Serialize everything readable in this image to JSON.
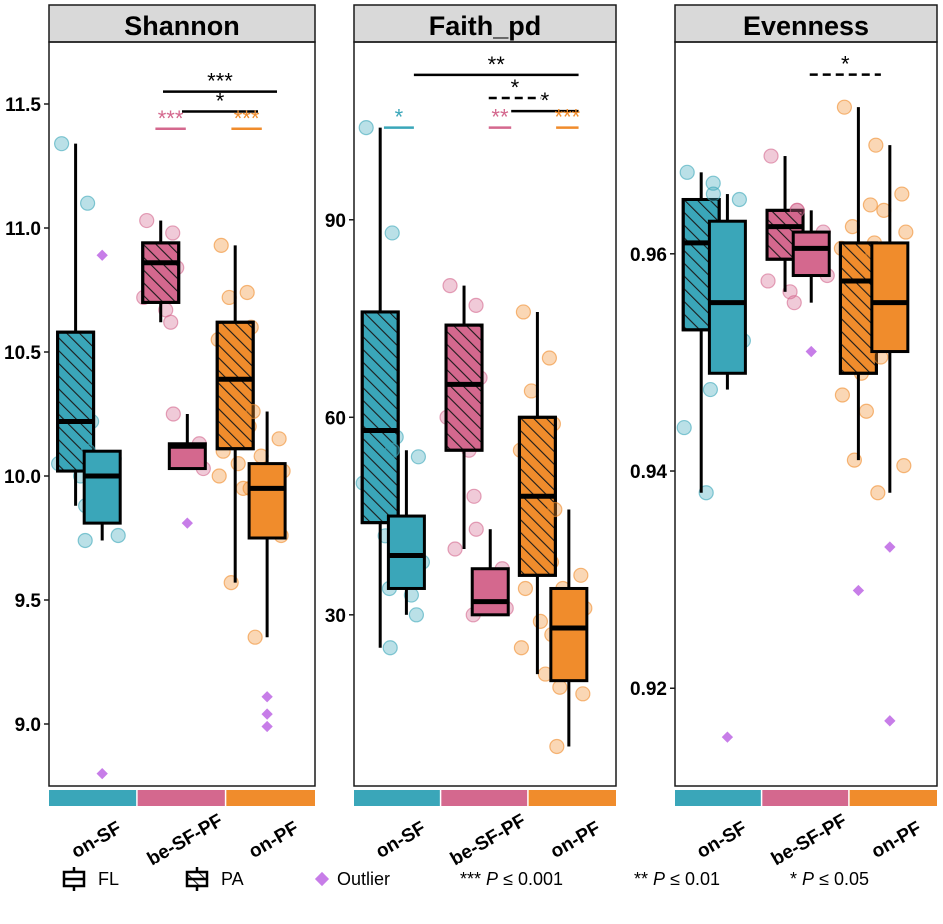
{
  "chart_data": [
    {
      "type": "box",
      "title": "Shannon",
      "ylim": [
        8.75,
        11.75
      ],
      "yticks": [
        "9.0",
        "9.5",
        "10.0",
        "10.5",
        "11.0",
        "11.5"
      ],
      "categories": [
        "on-SF",
        "be-SF-PF",
        "on-PF"
      ],
      "category_colors": [
        "#3aa6b9",
        "#d4688e",
        "#f08c2c"
      ],
      "boxes": [
        {
          "group": "on-SF",
          "type": "PA",
          "q1": 10.02,
          "median": 10.22,
          "q3": 10.58,
          "whisker_low": 9.88,
          "whisker_high": 11.34,
          "points": [
            11.34,
            11.1,
            10.3,
            10.22,
            10.05,
            10.0,
            9.88
          ],
          "outliers": []
        },
        {
          "group": "on-SF",
          "type": "FL",
          "q1": 9.81,
          "median": 10.0,
          "q3": 10.1,
          "whisker_low": 9.74,
          "whisker_high": 10.1,
          "points": [
            10.1,
            10.07,
            10.0,
            9.76,
            9.74
          ],
          "outliers": [
            10.89,
            8.8
          ]
        },
        {
          "group": "be-SF-PF",
          "type": "PA",
          "q1": 10.7,
          "median": 10.86,
          "q3": 10.94,
          "whisker_low": 10.62,
          "whisker_high": 11.03,
          "points": [
            11.03,
            10.98,
            10.9,
            10.84,
            10.72,
            10.67,
            10.62
          ],
          "outliers": []
        },
        {
          "group": "be-SF-PF",
          "type": "FL",
          "q1": 10.03,
          "median": 10.12,
          "q3": 10.13,
          "whisker_low": 10.03,
          "whisker_high": 10.25,
          "points": [
            10.25,
            10.13,
            10.08,
            10.03
          ],
          "outliers": [
            9.81
          ]
        },
        {
          "group": "on-PF",
          "type": "PA",
          "q1": 10.11,
          "median": 10.39,
          "q3": 10.62,
          "whisker_low": 9.57,
          "whisker_high": 10.93,
          "points": [
            10.93,
            10.74,
            10.72,
            10.6,
            10.55,
            10.48,
            10.4,
            10.35,
            10.2,
            10.1,
            10.05,
            10.0,
            9.95,
            9.57
          ],
          "outliers": []
        },
        {
          "group": "on-PF",
          "type": "FL",
          "q1": 9.75,
          "median": 9.95,
          "q3": 10.05,
          "whisker_low": 9.35,
          "whisker_high": 10.26,
          "points": [
            10.26,
            10.15,
            10.08,
            10.02,
            9.95,
            9.92,
            9.87,
            9.8,
            9.76,
            9.35
          ],
          "outliers": [
            9.11,
            9.04,
            8.99
          ]
        }
      ],
      "significance": [
        {
          "label": "***",
          "from": 3,
          "to": 6,
          "y": 11.55,
          "color": "#000000",
          "dashed": false,
          "tick": false
        },
        {
          "label": "*",
          "from": 3.5,
          "to": 5.5,
          "y": 11.47,
          "color": "#000000",
          "dashed": false,
          "tick": false
        },
        {
          "label": "***",
          "from": 2.8,
          "to": 3.6,
          "y": 11.4,
          "color": "#d4688e",
          "dashed": false,
          "tick": false
        },
        {
          "label": "***",
          "from": 4.8,
          "to": 5.6,
          "y": 11.4,
          "color": "#f08c2c",
          "dashed": false,
          "tick": false
        }
      ]
    },
    {
      "type": "box",
      "title": "Faith_pd",
      "ylim": [
        4,
        117
      ],
      "yticks": [
        "30",
        "60",
        "90"
      ],
      "categories": [
        "on-SF",
        "be-SF-PF",
        "on-PF"
      ],
      "category_colors": [
        "#3aa6b9",
        "#d4688e",
        "#f08c2c"
      ],
      "boxes": [
        {
          "group": "on-SF",
          "type": "PA",
          "q1": 44,
          "median": 58,
          "q3": 76,
          "whisker_low": 25,
          "whisker_high": 104,
          "points": [
            104,
            88,
            62,
            57,
            50,
            42,
            25
          ],
          "outliers": []
        },
        {
          "group": "on-SF",
          "type": "FL",
          "q1": 34,
          "median": 39,
          "q3": 45,
          "whisker_low": 30,
          "whisker_high": 55,
          "points": [
            55,
            54,
            43,
            38,
            34,
            33,
            30
          ],
          "outliers": []
        },
        {
          "group": "be-SF-PF",
          "type": "PA",
          "q1": 55,
          "median": 65,
          "q3": 74,
          "whisker_low": 40,
          "whisker_high": 80,
          "points": [
            80,
            77,
            72,
            66,
            60,
            55,
            48,
            40
          ],
          "outliers": []
        },
        {
          "group": "be-SF-PF",
          "type": "FL",
          "q1": 30,
          "median": 32,
          "q3": 37,
          "whisker_low": 30,
          "whisker_high": 43,
          "points": [
            43,
            37,
            32,
            31,
            30
          ],
          "outliers": []
        },
        {
          "group": "on-PF",
          "type": "PA",
          "q1": 36,
          "median": 48,
          "q3": 60,
          "whisker_low": 21,
          "whisker_high": 76,
          "points": [
            76,
            69,
            64,
            59,
            55,
            51,
            47,
            43,
            38,
            34,
            29,
            25,
            21
          ],
          "outliers": []
        },
        {
          "group": "on-PF",
          "type": "FL",
          "q1": 20,
          "median": 28,
          "q3": 34,
          "whisker_low": 10,
          "whisker_high": 46,
          "points": [
            46,
            36,
            34,
            31,
            27,
            23,
            21,
            19,
            18,
            10
          ],
          "outliers": []
        }
      ],
      "significance": [
        {
          "label": "**",
          "from": 1.6,
          "to": 6,
          "y": 112,
          "color": "#000000",
          "dashed": false,
          "tick": false
        },
        {
          "label": "*",
          "from": 3.6,
          "to": 5,
          "y": 108.5,
          "color": "#000000",
          "dashed": true,
          "tick": false
        },
        {
          "label": "*",
          "from": 4.2,
          "to": 6,
          "y": 106.5,
          "color": "#000000",
          "dashed": false,
          "tick": false
        },
        {
          "label": "*",
          "from": 0.8,
          "to": 1.6,
          "y": 104,
          "color": "#3aa6b9",
          "dashed": false,
          "tick": false
        },
        {
          "label": "**",
          "from": 3.6,
          "to": 4.2,
          "y": 104,
          "color": "#d4688e",
          "dashed": false,
          "tick": false
        },
        {
          "label": "***",
          "from": 5.4,
          "to": 6,
          "y": 104,
          "color": "#f08c2c",
          "dashed": false,
          "tick": false
        }
      ]
    },
    {
      "type": "box",
      "title": "Evenness",
      "ylim": [
        0.911,
        0.9795
      ],
      "yticks": [
        "0.92",
        "0.94",
        "0.96"
      ],
      "categories": [
        "on-SF",
        "be-SF-PF",
        "on-PF"
      ],
      "category_colors": [
        "#3aa6b9",
        "#d4688e",
        "#f08c2c"
      ],
      "boxes": [
        {
          "group": "on-SF",
          "type": "PA",
          "q1": 0.953,
          "median": 0.961,
          "q3": 0.965,
          "whisker_low": 0.938,
          "whisker_high": 0.9675,
          "points": [
            0.9675,
            0.9665,
            0.963,
            0.958,
            0.944,
            0.938
          ],
          "outliers": []
        },
        {
          "group": "on-SF",
          "type": "FL",
          "q1": 0.949,
          "median": 0.9555,
          "q3": 0.963,
          "whisker_low": 0.9475,
          "whisker_high": 0.9655,
          "points": [
            0.9655,
            0.965,
            0.96,
            0.952,
            0.9475
          ],
          "outliers": [
            0.9155
          ]
        },
        {
          "group": "be-SF-PF",
          "type": "PA",
          "q1": 0.9595,
          "median": 0.9625,
          "q3": 0.964,
          "whisker_low": 0.9565,
          "whisker_high": 0.969,
          "points": [
            0.969,
            0.964,
            0.962,
            0.96,
            0.9575,
            0.9565
          ],
          "outliers": []
        },
        {
          "group": "be-SF-PF",
          "type": "FL",
          "q1": 0.958,
          "median": 0.9605,
          "q3": 0.962,
          "whisker_low": 0.9555,
          "whisker_high": 0.964,
          "points": [
            0.964,
            0.962,
            0.96,
            0.958,
            0.9555
          ],
          "outliers": [
            0.951
          ]
        },
        {
          "group": "on-PF",
          "type": "PA",
          "q1": 0.949,
          "median": 0.9575,
          "q3": 0.961,
          "whisker_low": 0.941,
          "whisker_high": 0.9735,
          "points": [
            0.9735,
            0.9645,
            0.9625,
            0.961,
            0.9605,
            0.958,
            0.9565,
            0.955,
            0.9535,
            0.951,
            0.949,
            0.947,
            0.9455,
            0.941
          ],
          "outliers": [
            0.929
          ]
        },
        {
          "group": "on-PF",
          "type": "FL",
          "q1": 0.951,
          "median": 0.9555,
          "q3": 0.961,
          "whisker_low": 0.938,
          "whisker_high": 0.97,
          "points": [
            0.97,
            0.9655,
            0.964,
            0.962,
            0.96,
            0.957,
            0.954,
            0.9505,
            0.9405,
            0.938
          ],
          "outliers": [
            0.933,
            0.917
          ]
        }
      ],
      "significance": [
        {
          "label": "*",
          "from": 3.6,
          "to": 5.5,
          "y": 0.9765,
          "color": "#000000",
          "dashed": true,
          "tick": false
        }
      ]
    }
  ],
  "legend": {
    "fl": "FL",
    "pa": "PA",
    "outlier": "Outlier",
    "sig3_stars": "***",
    "sig3_p": "P",
    "sig3_value": "≤ 0.001",
    "sig2_stars": "**",
    "sig2_p": "P",
    "sig2_value": "≤ 0.01",
    "sig1_stars": "*",
    "sig1_p": "P",
    "sig1_value": "≤ 0.05"
  },
  "colors": {
    "on-SF": "#3aa6b9",
    "be-SF-PF": "#d4688e",
    "on-PF": "#f08c2c",
    "outlier": "#c77de8",
    "strip_bg": "#d9d9d9"
  }
}
